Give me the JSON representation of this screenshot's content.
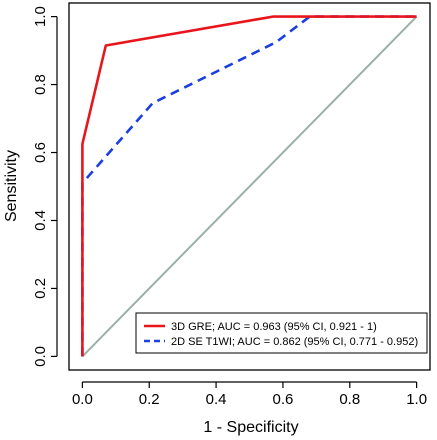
{
  "chart_data": {
    "type": "line",
    "title": "",
    "xlabel": "1 - Specificity",
    "ylabel": "Sensitivity",
    "xlim": [
      -0.04,
      1.04
    ],
    "ylim": [
      -0.04,
      1.04
    ],
    "x_ticks": [
      0.0,
      0.2,
      0.4,
      0.6,
      0.8,
      1.0
    ],
    "y_ticks": [
      0.0,
      0.2,
      0.4,
      0.6,
      0.8,
      1.0
    ],
    "x_tick_labels": [
      "0.0",
      "0.2",
      "0.4",
      "0.6",
      "0.8",
      "1.0"
    ],
    "y_tick_labels": [
      "0.0",
      "0.2",
      "0.4",
      "0.6",
      "0.8",
      "1.0"
    ],
    "reference_line": {
      "x": [
        0,
        1
      ],
      "y": [
        0,
        1
      ],
      "color": "#9bb0a7"
    },
    "legend_position": "bottom-right",
    "series": [
      {
        "name": "3D GRE; AUC = 0.963 (95% CI, 0.921 - 1)",
        "color": "#e8161b",
        "dash": "solid",
        "x": [
          0.0,
          0.0,
          0.0,
          0.07,
          0.57,
          1.0
        ],
        "y": [
          0.0,
          0.51,
          0.625,
          0.915,
          1.0,
          1.0
        ]
      },
      {
        "name": "2D SE T1WI; AUC = 0.862 (95% CI, 0.771 - 0.952)",
        "color": "#1b3fe0",
        "dash": "dashed",
        "x": [
          0.0,
          0.0,
          0.21,
          0.58,
          0.68,
          1.0
        ],
        "y": [
          0.0,
          0.51,
          0.745,
          0.925,
          1.0,
          1.0
        ]
      }
    ]
  }
}
